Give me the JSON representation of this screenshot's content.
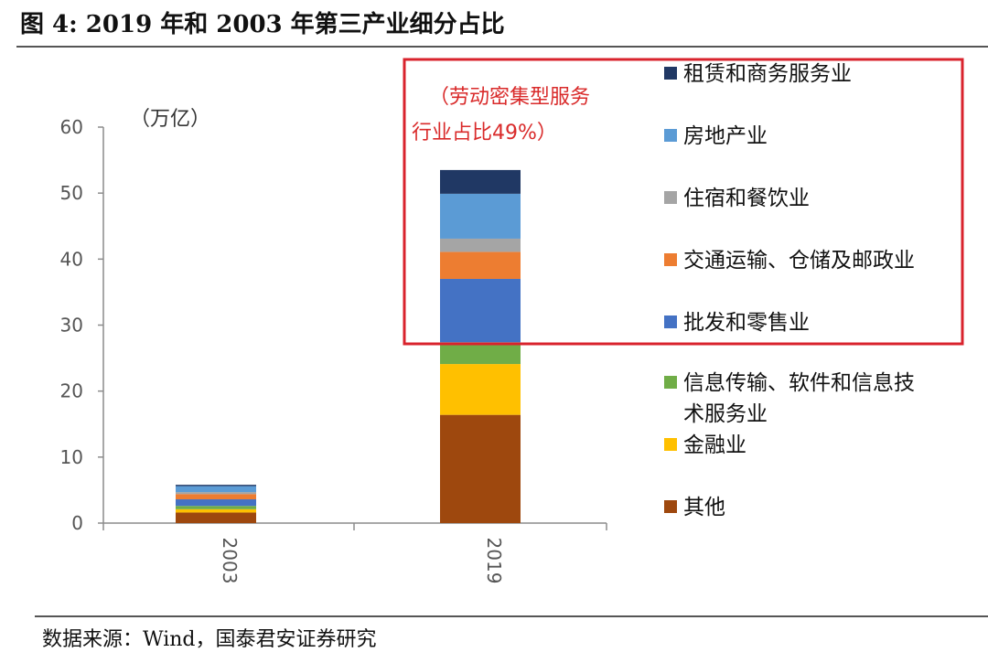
{
  "figure": {
    "title": "图 4:  2019 年和 2003 年第三产业细分占比",
    "source": "数据来源：Wind，国泰君安证券研究"
  },
  "chart_data": {
    "type": "bar",
    "stacked": true,
    "categories": [
      "2003",
      "2019"
    ],
    "unit": "（万亿）",
    "ylim": [
      0,
      60
    ],
    "yticks": [
      0,
      10,
      20,
      30,
      40,
      50,
      60
    ],
    "grid": false,
    "legend_position": "right",
    "annotation_lines": [
      "（劳动密集型服务",
      "行业占比49%）"
    ],
    "highlight_box_color": "#d9232d",
    "series": [
      {
        "name": "租赁和商务服务业",
        "color": "#203864",
        "values": [
          0.2,
          3.6
        ]
      },
      {
        "name": "房地产业",
        "color": "#5b9bd5",
        "values": [
          0.9,
          6.8
        ]
      },
      {
        "name": "住宿和餐饮业",
        "color": "#a5a5a5",
        "values": [
          0.3,
          2.0
        ]
      },
      {
        "name": "交通运输、仓储及邮政业",
        "color": "#ed7d31",
        "values": [
          0.8,
          4.1
        ]
      },
      {
        "name": "批发和零售业",
        "color": "#4472c4",
        "values": [
          1.0,
          9.6
        ]
      },
      {
        "name": "信息传输、软件和信息技术服务业",
        "color": "#70ad47",
        "values": [
          0.5,
          3.3
        ]
      },
      {
        "name": "金融业",
        "color": "#ffc000",
        "values": [
          0.5,
          7.7
        ]
      },
      {
        "name": "其他",
        "color": "#9e480e",
        "values": [
          1.6,
          16.4
        ]
      }
    ],
    "legend_lines": [
      [
        "租赁和商务服务业"
      ],
      [
        "房地产业"
      ],
      [
        "住宿和餐饮业"
      ],
      [
        "交通运输、仓储及邮政业"
      ],
      [
        "批发和零售业"
      ],
      [
        "信息传输、软件和信息技",
        "术服务业"
      ],
      [
        "金融业"
      ],
      [
        "其他"
      ]
    ]
  }
}
